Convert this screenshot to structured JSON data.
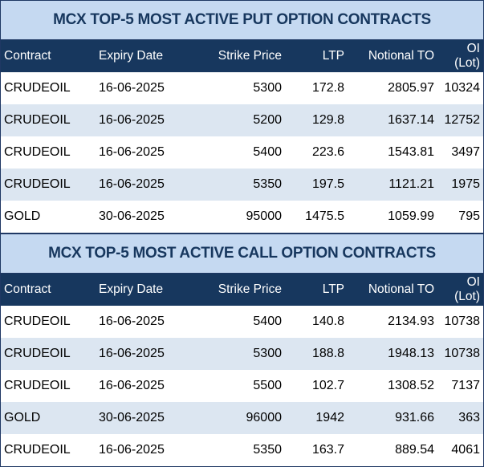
{
  "headers": [
    "Contract",
    "Expiry Date",
    "Strike Price",
    "LTP",
    "Notional TO",
    "OI (Lot)"
  ],
  "put": {
    "title": "MCX TOP-5 MOST ACTIVE PUT OPTION CONTRACTS",
    "rows": [
      [
        "CRUDEOIL",
        "16-06-2025",
        "5300",
        "172.8",
        "2805.97",
        "10324"
      ],
      [
        "CRUDEOIL",
        "16-06-2025",
        "5200",
        "129.8",
        "1637.14",
        "12752"
      ],
      [
        "CRUDEOIL",
        "16-06-2025",
        "5400",
        "223.6",
        "1543.81",
        "3497"
      ],
      [
        "CRUDEOIL",
        "16-06-2025",
        "5350",
        "197.5",
        "1121.21",
        "1975"
      ],
      [
        "GOLD",
        "30-06-2025",
        "95000",
        "1475.5",
        "1059.99",
        "795"
      ]
    ]
  },
  "call": {
    "title": "MCX TOP-5 MOST ACTIVE CALL OPTION CONTRACTS",
    "rows": [
      [
        "CRUDEOIL",
        "16-06-2025",
        "5400",
        "140.8",
        "2134.93",
        "10738"
      ],
      [
        "CRUDEOIL",
        "16-06-2025",
        "5300",
        "188.8",
        "1948.13",
        "10738"
      ],
      [
        "CRUDEOIL",
        "16-06-2025",
        "5500",
        "102.7",
        "1308.52",
        "7137"
      ],
      [
        "GOLD",
        "30-06-2025",
        "96000",
        "1942",
        "931.66",
        "363"
      ],
      [
        "CRUDEOIL",
        "16-06-2025",
        "5350",
        "163.7",
        "889.54",
        "4061"
      ]
    ]
  }
}
